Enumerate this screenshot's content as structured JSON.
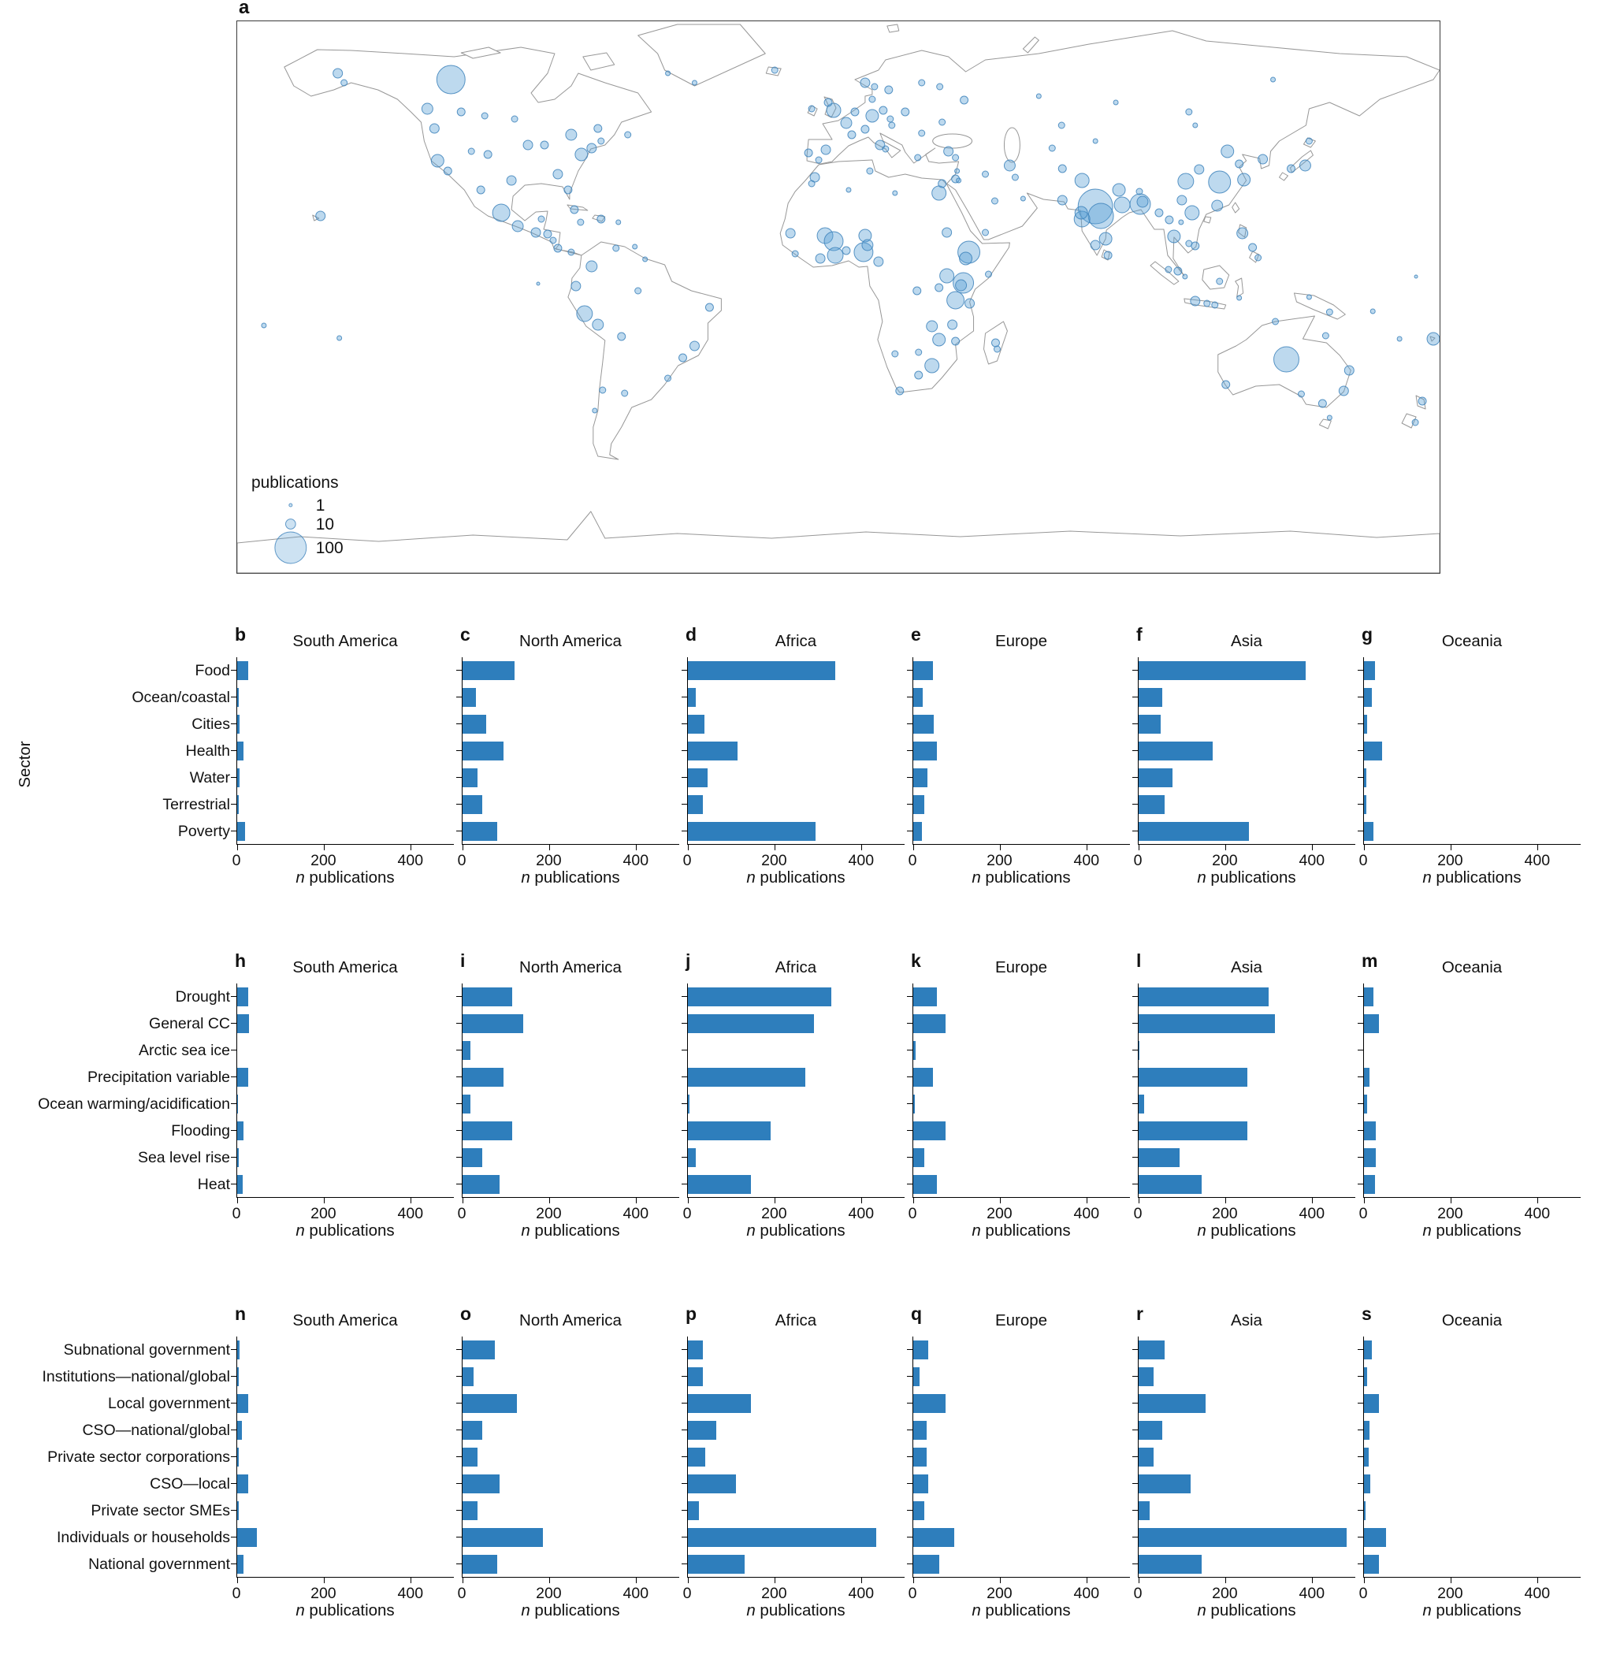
{
  "map": {
    "panel_letter": "a",
    "legend": {
      "title": "n publications",
      "sizes": [
        1,
        10,
        100
      ]
    },
    "bubbles": [
      [
        272,
        74,
        18
      ],
      [
        128,
        66,
        6
      ],
      [
        136,
        78,
        4
      ],
      [
        242,
        111,
        7
      ],
      [
        285,
        115,
        5
      ],
      [
        315,
        120,
        4
      ],
      [
        353,
        124,
        4
      ],
      [
        425,
        144,
        7
      ],
      [
        459,
        136,
        5
      ],
      [
        497,
        144,
        4
      ],
      [
        251,
        136,
        6
      ],
      [
        255,
        177,
        8
      ],
      [
        268,
        190,
        5
      ],
      [
        298,
        165,
        4
      ],
      [
        319,
        169,
        5
      ],
      [
        349,
        202,
        6
      ],
      [
        370,
        157,
        6
      ],
      [
        391,
        157,
        5
      ],
      [
        408,
        194,
        6
      ],
      [
        421,
        214,
        5
      ],
      [
        438,
        169,
        8
      ],
      [
        451,
        161,
        6
      ],
      [
        463,
        152,
        4
      ],
      [
        310,
        214,
        5
      ],
      [
        336,
        243,
        11
      ],
      [
        357,
        260,
        7
      ],
      [
        387,
        251,
        4
      ],
      [
        380,
        268,
        6
      ],
      [
        395,
        270,
        5
      ],
      [
        402,
        278,
        4
      ],
      [
        408,
        288,
        5
      ],
      [
        425,
        293,
        4
      ],
      [
        429,
        239,
        5
      ],
      [
        437,
        255,
        4
      ],
      [
        463,
        251,
        5
      ],
      [
        485,
        255,
        3
      ],
      [
        506,
        286,
        3
      ],
      [
        451,
        311,
        7
      ],
      [
        482,
        288,
        4
      ],
      [
        431,
        336,
        6
      ],
      [
        442,
        371,
        10
      ],
      [
        459,
        385,
        7
      ],
      [
        489,
        400,
        5
      ],
      [
        465,
        468,
        4
      ],
      [
        455,
        494,
        3
      ],
      [
        493,
        472,
        4
      ],
      [
        601,
        363,
        5
      ],
      [
        582,
        412,
        6
      ],
      [
        567,
        427,
        5
      ],
      [
        548,
        453,
        4
      ],
      [
        510,
        342,
        4
      ],
      [
        519,
        302,
        3
      ],
      [
        106,
        247,
        6
      ],
      [
        383,
        333,
        2
      ],
      [
        130,
        402,
        3
      ],
      [
        34,
        386,
        3
      ],
      [
        548,
        66,
        3
      ],
      [
        582,
        78,
        3
      ],
      [
        684,
        62,
        4
      ],
      [
        759,
        113,
        9
      ],
      [
        752,
        103,
        5
      ],
      [
        731,
        111,
        4
      ],
      [
        799,
        78,
        6
      ],
      [
        811,
        83,
        4
      ],
      [
        829,
        87,
        5
      ],
      [
        871,
        78,
        4
      ],
      [
        808,
        99,
        4
      ],
      [
        808,
        120,
        8
      ],
      [
        822,
        113,
        5
      ],
      [
        786,
        115,
        5
      ],
      [
        775,
        129,
        7
      ],
      [
        782,
        144,
        5
      ],
      [
        749,
        163,
        6
      ],
      [
        740,
        176,
        4
      ],
      [
        727,
        167,
        5
      ],
      [
        818,
        157,
        6
      ],
      [
        825,
        162,
        4
      ],
      [
        799,
        137,
        5
      ],
      [
        833,
        132,
        4
      ],
      [
        850,
        115,
        5
      ],
      [
        831,
        124,
        4
      ],
      [
        871,
        142,
        4
      ],
      [
        866,
        173,
        4
      ],
      [
        897,
        128,
        4
      ],
      [
        735,
        198,
        6
      ],
      [
        731,
        206,
        4
      ],
      [
        778,
        214,
        3
      ],
      [
        805,
        190,
        4
      ],
      [
        837,
        218,
        3
      ],
      [
        893,
        218,
        9
      ],
      [
        897,
        206,
        5
      ],
      [
        903,
        268,
        6
      ],
      [
        704,
        269,
        6
      ],
      [
        748,
        272,
        10
      ],
      [
        759,
        279,
        12
      ],
      [
        799,
        272,
        8
      ],
      [
        761,
        297,
        10
      ],
      [
        742,
        301,
        6
      ],
      [
        710,
        295,
        4
      ],
      [
        797,
        293,
        12
      ],
      [
        802,
        284,
        7
      ],
      [
        775,
        291,
        5
      ],
      [
        816,
        305,
        6
      ],
      [
        931,
        293,
        14
      ],
      [
        927,
        301,
        8
      ],
      [
        924,
        332,
        13
      ],
      [
        921,
        335,
        7
      ],
      [
        903,
        323,
        9
      ],
      [
        914,
        354,
        11
      ],
      [
        932,
        358,
        6
      ],
      [
        893,
        338,
        5
      ],
      [
        956,
        321,
        4
      ],
      [
        865,
        342,
        5
      ],
      [
        884,
        387,
        7
      ],
      [
        910,
        385,
        6
      ],
      [
        893,
        404,
        8
      ],
      [
        914,
        406,
        5
      ],
      [
        867,
        420,
        4
      ],
      [
        837,
        422,
        4
      ],
      [
        884,
        437,
        9
      ],
      [
        867,
        449,
        5
      ],
      [
        843,
        469,
        5
      ],
      [
        965,
        408,
        5
      ],
      [
        967,
        416,
        4
      ],
      [
        905,
        165,
        6
      ],
      [
        914,
        173,
        4
      ],
      [
        914,
        200,
        5
      ],
      [
        918,
        202,
        3
      ],
      [
        916,
        190,
        3
      ],
      [
        952,
        194,
        4
      ],
      [
        983,
        183,
        7
      ],
      [
        990,
        198,
        4
      ],
      [
        964,
        228,
        4
      ],
      [
        952,
        268,
        4
      ],
      [
        1000,
        225,
        3
      ],
      [
        1049,
        132,
        4
      ],
      [
        1092,
        152,
        3
      ],
      [
        1037,
        161,
        4
      ],
      [
        1050,
        187,
        5
      ],
      [
        925,
        100,
        5
      ],
      [
        894,
        83,
        4
      ],
      [
        1020,
        95,
        3
      ],
      [
        1118,
        103,
        3
      ],
      [
        1211,
        115,
        4
      ],
      [
        1318,
        74,
        3
      ],
      [
        1075,
        202,
        9
      ],
      [
        1050,
        227,
        6
      ],
      [
        1092,
        235,
        22
      ],
      [
        1099,
        247,
        16
      ],
      [
        1075,
        251,
        10
      ],
      [
        1105,
        276,
        8
      ],
      [
        1092,
        284,
        6
      ],
      [
        1126,
        233,
        10
      ],
      [
        1074,
        243,
        8
      ],
      [
        1122,
        214,
        8
      ],
      [
        1148,
        216,
        4
      ],
      [
        1149,
        232,
        13
      ],
      [
        1152,
        229,
        7
      ],
      [
        1108,
        297,
        5
      ],
      [
        1173,
        243,
        5
      ],
      [
        1207,
        203,
        10
      ],
      [
        1250,
        204,
        14
      ],
      [
        1260,
        165,
        8
      ],
      [
        1281,
        201,
        8
      ],
      [
        1247,
        234,
        7
      ],
      [
        1224,
        188,
        6
      ],
      [
        1275,
        181,
        5
      ],
      [
        1202,
        227,
        6
      ],
      [
        1219,
        132,
        3
      ],
      [
        1305,
        175,
        6
      ],
      [
        1359,
        183,
        7
      ],
      [
        1341,
        187,
        5
      ],
      [
        1364,
        152,
        4
      ],
      [
        1192,
        273,
        8
      ],
      [
        1186,
        252,
        5
      ],
      [
        1215,
        243,
        9
      ],
      [
        1219,
        285,
        5
      ],
      [
        1211,
        282,
        4
      ],
      [
        1201,
        255,
        3
      ],
      [
        1279,
        269,
        7
      ],
      [
        1292,
        287,
        5
      ],
      [
        1299,
        300,
        4
      ],
      [
        1197,
        317,
        5
      ],
      [
        1206,
        324,
        3
      ],
      [
        1250,
        330,
        4
      ],
      [
        1219,
        355,
        6
      ],
      [
        1234,
        358,
        4
      ],
      [
        1244,
        360,
        4
      ],
      [
        1185,
        315,
        4
      ],
      [
        1275,
        351,
        3
      ],
      [
        1390,
        369,
        4
      ],
      [
        1364,
        350,
        3
      ],
      [
        1335,
        429,
        16
      ],
      [
        1258,
        461,
        5
      ],
      [
        1321,
        381,
        4
      ],
      [
        1385,
        399,
        4
      ],
      [
        1415,
        443,
        6
      ],
      [
        1408,
        469,
        6
      ],
      [
        1381,
        485,
        5
      ],
      [
        1354,
        473,
        4
      ],
      [
        1390,
        503,
        3
      ],
      [
        1508,
        482,
        5
      ],
      [
        1499,
        509,
        4
      ],
      [
        1522,
        403,
        8
      ],
      [
        1479,
        403,
        3
      ],
      [
        1445,
        368,
        3
      ],
      [
        1500,
        324,
        2
      ]
    ]
  },
  "chart_data": [
    {
      "type": "bar",
      "orientation": "horizontal",
      "ylabel": "Sector",
      "xlabel": "n publications",
      "xlim": [
        0,
        500
      ],
      "xticks": [
        0,
        200,
        400
      ],
      "categories": [
        "Food",
        "Ocean/coastal",
        "Cities",
        "Health",
        "Water",
        "Terrestrial",
        "Poverty"
      ],
      "panels": [
        {
          "letter": "b",
          "title": "South America",
          "values": [
            25,
            4,
            6,
            14,
            5,
            4,
            18
          ]
        },
        {
          "letter": "c",
          "title": "North America",
          "values": [
            120,
            30,
            55,
            95,
            35,
            45,
            80
          ]
        },
        {
          "letter": "d",
          "title": "Africa",
          "values": [
            340,
            18,
            38,
            115,
            45,
            35,
            295
          ]
        },
        {
          "letter": "e",
          "title": "Europe",
          "values": [
            45,
            22,
            48,
            55,
            32,
            25,
            20
          ]
        },
        {
          "letter": "f",
          "title": "Asia",
          "values": [
            385,
            55,
            50,
            170,
            78,
            60,
            255
          ]
        },
        {
          "letter": "g",
          "title": "Oceania",
          "values": [
            25,
            18,
            8,
            42,
            6,
            6,
            22
          ]
        }
      ]
    },
    {
      "type": "bar",
      "orientation": "horizontal",
      "ylabel": "",
      "xlabel": "n publications",
      "xlim": [
        0,
        500
      ],
      "xticks": [
        0,
        200,
        400
      ],
      "categories": [
        "Drought",
        "General CC",
        "Arctic sea ice",
        "Precipitation variable",
        "Ocean warming/acidification",
        "Flooding",
        "Sea level rise",
        "Heat"
      ],
      "panels": [
        {
          "letter": "h",
          "title": "South America",
          "values": [
            25,
            28,
            0,
            25,
            2,
            15,
            4,
            12
          ]
        },
        {
          "letter": "i",
          "title": "North America",
          "values": [
            115,
            140,
            18,
            95,
            18,
            115,
            45,
            85
          ]
        },
        {
          "letter": "j",
          "title": "Africa",
          "values": [
            330,
            290,
            0,
            270,
            4,
            190,
            18,
            145
          ]
        },
        {
          "letter": "k",
          "title": "Europe",
          "values": [
            55,
            75,
            5,
            45,
            4,
            75,
            25,
            55
          ]
        },
        {
          "letter": "l",
          "title": "Asia",
          "values": [
            300,
            315,
            2,
            250,
            12,
            250,
            95,
            145
          ]
        },
        {
          "letter": "m",
          "title": "Oceania",
          "values": [
            22,
            35,
            0,
            12,
            8,
            28,
            28,
            25
          ]
        }
      ]
    },
    {
      "type": "bar",
      "orientation": "horizontal",
      "ylabel": "",
      "xlabel": "n publications",
      "xlim": [
        0,
        500
      ],
      "xticks": [
        0,
        200,
        400
      ],
      "categories": [
        "Subnational government",
        "Institutions—national/global",
        "Local government",
        "CSO—national/global",
        "Private sector corporations",
        "CSO—local",
        "Private sector SMEs",
        "Individuals or households",
        "National government"
      ],
      "panels": [
        {
          "letter": "n",
          "title": "South America",
          "values": [
            6,
            4,
            25,
            10,
            4,
            25,
            4,
            45,
            15
          ]
        },
        {
          "letter": "o",
          "title": "North America",
          "values": [
            75,
            25,
            125,
            45,
            35,
            85,
            35,
            185,
            80
          ]
        },
        {
          "letter": "p",
          "title": "Africa",
          "values": [
            35,
            35,
            145,
            65,
            40,
            110,
            25,
            435,
            130
          ]
        },
        {
          "letter": "q",
          "title": "Europe",
          "values": [
            35,
            15,
            75,
            30,
            30,
            35,
            25,
            95,
            60
          ]
        },
        {
          "letter": "r",
          "title": "Asia",
          "values": [
            60,
            35,
            155,
            55,
            35,
            120,
            25,
            480,
            145
          ]
        },
        {
          "letter": "s",
          "title": "Oceania",
          "values": [
            18,
            8,
            35,
            12,
            10,
            15,
            4,
            50,
            35
          ]
        }
      ]
    }
  ]
}
